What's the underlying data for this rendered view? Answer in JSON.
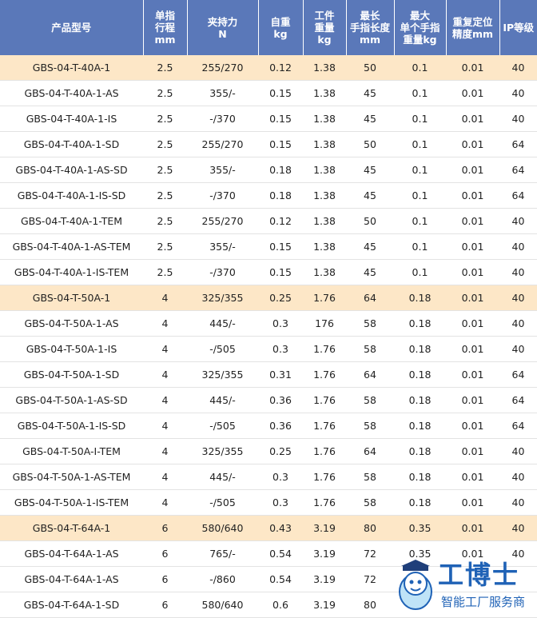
{
  "headers": [
    "产品型号",
    "单指\n行程\nmm",
    "夹持力\nN",
    "自重\nkg",
    "工件\n重量\nkg",
    "最长\n手指长度\nmm",
    "最大\n单个手指\n重量kg",
    "重复定位\n精度mm",
    "IP等级"
  ],
  "rows": [
    {
      "highlight": true,
      "cells": [
        "GBS-04-T-40A-1",
        "2.5",
        "255/270",
        "0.12",
        "1.38",
        "50",
        "0.1",
        "0.01",
        "40"
      ]
    },
    {
      "highlight": false,
      "cells": [
        "GBS-04-T-40A-1-AS",
        "2.5",
        "355/-",
        "0.15",
        "1.38",
        "45",
        "0.1",
        "0.01",
        "40"
      ]
    },
    {
      "highlight": false,
      "cells": [
        "GBS-04-T-40A-1-IS",
        "2.5",
        "-/370",
        "0.15",
        "1.38",
        "45",
        "0.1",
        "0.01",
        "40"
      ]
    },
    {
      "highlight": false,
      "cells": [
        "GBS-04-T-40A-1-SD",
        "2.5",
        "255/270",
        "0.15",
        "1.38",
        "50",
        "0.1",
        "0.01",
        "64"
      ]
    },
    {
      "highlight": false,
      "cells": [
        "GBS-04-T-40A-1-AS-SD",
        "2.5",
        "355/-",
        "0.18",
        "1.38",
        "45",
        "0.1",
        "0.01",
        "64"
      ]
    },
    {
      "highlight": false,
      "cells": [
        "GBS-04-T-40A-1-IS-SD",
        "2.5",
        "-/370",
        "0.18",
        "1.38",
        "45",
        "0.1",
        "0.01",
        "64"
      ]
    },
    {
      "highlight": false,
      "cells": [
        "GBS-04-T-40A-1-TEM",
        "2.5",
        "255/270",
        "0.12",
        "1.38",
        "50",
        "0.1",
        "0.01",
        "40"
      ]
    },
    {
      "highlight": false,
      "cells": [
        "GBS-04-T-40A-1-AS-TEM",
        "2.5",
        "355/-",
        "0.15",
        "1.38",
        "45",
        "0.1",
        "0.01",
        "40"
      ]
    },
    {
      "highlight": false,
      "cells": [
        "GBS-04-T-40A-1-IS-TEM",
        "2.5",
        "-/370",
        "0.15",
        "1.38",
        "45",
        "0.1",
        "0.01",
        "40"
      ]
    },
    {
      "highlight": true,
      "cells": [
        "GBS-04-T-50A-1",
        "4",
        "325/355",
        "0.25",
        "1.76",
        "64",
        "0.18",
        "0.01",
        "40"
      ]
    },
    {
      "highlight": false,
      "cells": [
        "GBS-04-T-50A-1-AS",
        "4",
        "445/-",
        "0.3",
        "176",
        "58",
        "0.18",
        "0.01",
        "40"
      ]
    },
    {
      "highlight": false,
      "cells": [
        "GBS-04-T-50A-1-IS",
        "4",
        "-/505",
        "0.3",
        "1.76",
        "58",
        "0.18",
        "0.01",
        "40"
      ]
    },
    {
      "highlight": false,
      "cells": [
        "GBS-04-T-50A-1-SD",
        "4",
        "325/355",
        "0.31",
        "1.76",
        "64",
        "0.18",
        "0.01",
        "64"
      ]
    },
    {
      "highlight": false,
      "cells": [
        "GBS-04-T-50A-1-AS-SD",
        "4",
        "445/-",
        "0.36",
        "1.76",
        "58",
        "0.18",
        "0.01",
        "64"
      ]
    },
    {
      "highlight": false,
      "cells": [
        "GBS-04-T-50A-1-IS-SD",
        "4",
        "-/505",
        "0.36",
        "1.76",
        "58",
        "0.18",
        "0.01",
        "64"
      ]
    },
    {
      "highlight": false,
      "cells": [
        "GBS-04-T-50A-I-TEM",
        "4",
        "325/355",
        "0.25",
        "1.76",
        "64",
        "0.18",
        "0.01",
        "40"
      ]
    },
    {
      "highlight": false,
      "cells": [
        "GBS-04-T-50A-1-AS-TEM",
        "4",
        "445/-",
        "0.3",
        "1.76",
        "58",
        "0.18",
        "0.01",
        "40"
      ]
    },
    {
      "highlight": false,
      "cells": [
        "GBS-04-T-50A-1-IS-TEM",
        "4",
        "-/505",
        "0.3",
        "1.76",
        "58",
        "0.18",
        "0.01",
        "40"
      ]
    },
    {
      "highlight": true,
      "cells": [
        "GBS-04-T-64A-1",
        "6",
        "580/640",
        "0.43",
        "3.19",
        "80",
        "0.35",
        "0.01",
        "40"
      ]
    },
    {
      "highlight": false,
      "cells": [
        "GBS-04-T-64A-1-AS",
        "6",
        "765/-",
        "0.54",
        "3.19",
        "72",
        "0.35",
        "0.01",
        "40"
      ]
    },
    {
      "highlight": false,
      "cells": [
        "GBS-04-T-64A-1-AS",
        "6",
        "-/860",
        "0.54",
        "3.19",
        "72",
        "",
        "",
        ""
      ]
    },
    {
      "highlight": false,
      "cells": [
        "GBS-04-T-64A-1-SD",
        "6",
        "580/640",
        "0.6",
        "3.19",
        "80",
        "",
        "",
        ""
      ]
    }
  ],
  "colors": {
    "header_bg": "#5a78b9",
    "highlight_bg": "#fde7c7"
  },
  "watermark": {
    "title": "工博士",
    "subtitle": "智能工厂服务商",
    "icon": "mascot-icon"
  }
}
